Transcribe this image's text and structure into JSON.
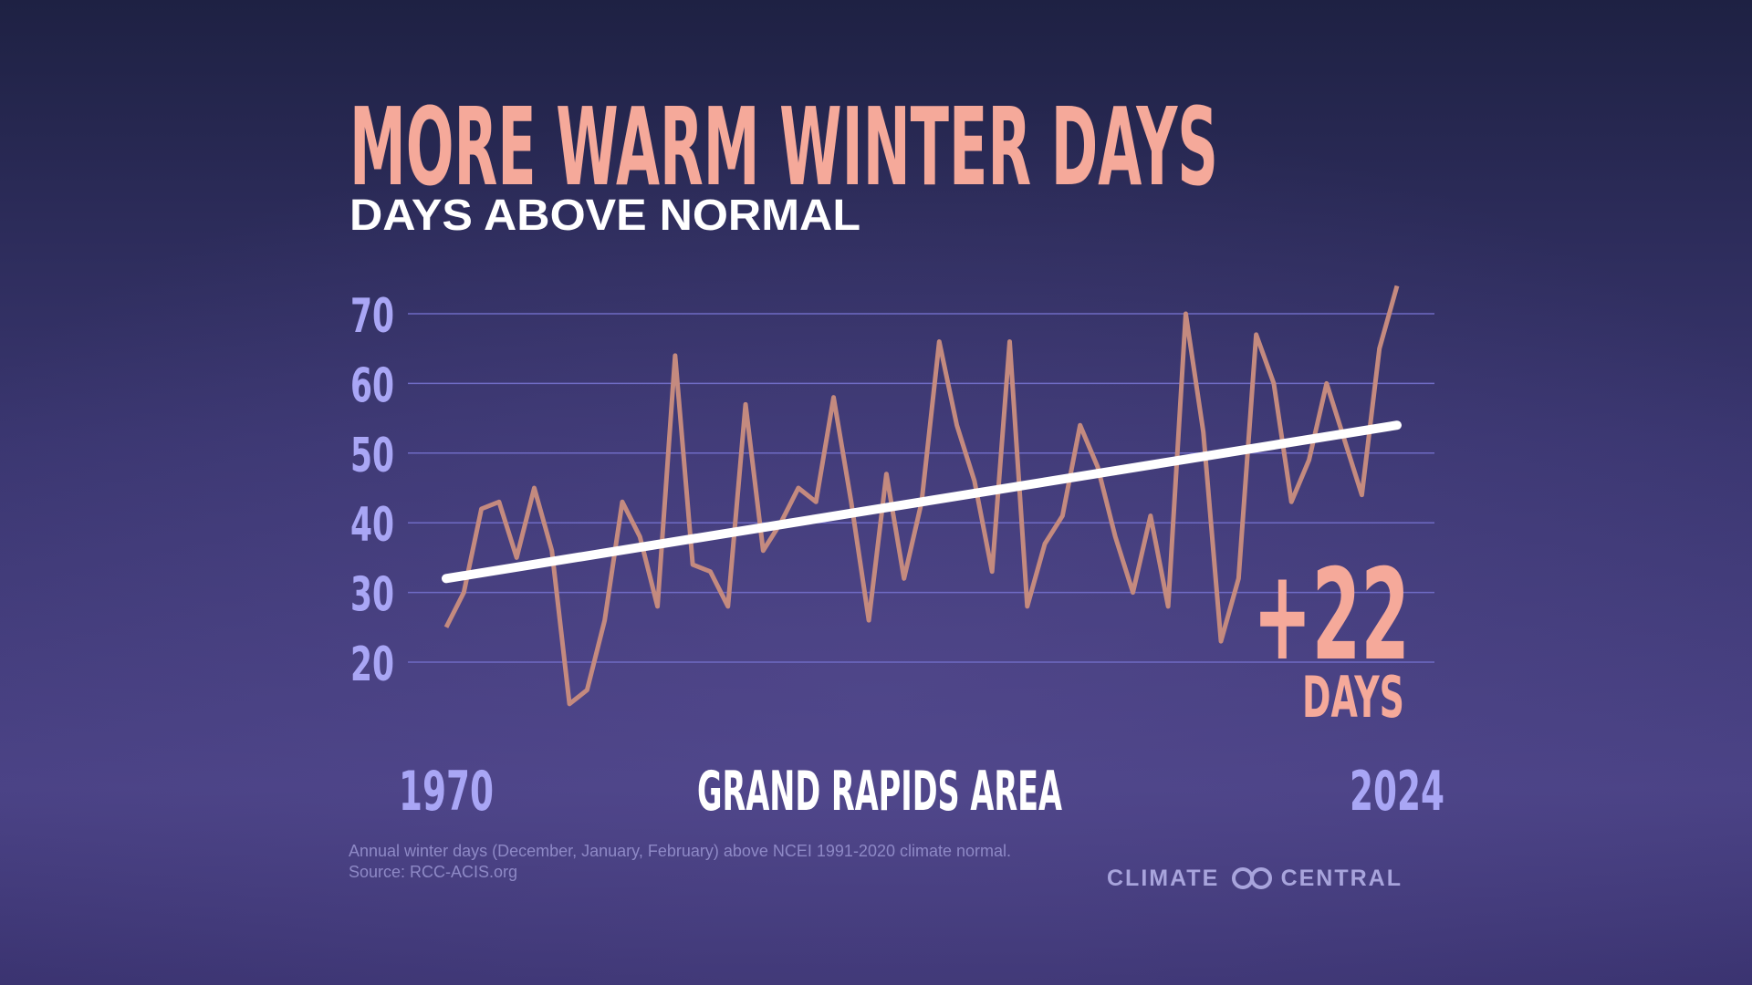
{
  "chart_data": {
    "type": "line",
    "title": "MORE WARM WINTER DAYS",
    "subtitle": "DAYS ABOVE NORMAL",
    "x": [
      1970,
      1971,
      1972,
      1973,
      1974,
      1975,
      1976,
      1977,
      1978,
      1979,
      1980,
      1981,
      1982,
      1983,
      1984,
      1985,
      1986,
      1987,
      1988,
      1989,
      1990,
      1991,
      1992,
      1993,
      1994,
      1995,
      1996,
      1997,
      1998,
      1999,
      2000,
      2001,
      2002,
      2003,
      2004,
      2005,
      2006,
      2007,
      2008,
      2009,
      2010,
      2011,
      2012,
      2013,
      2014,
      2015,
      2016,
      2017,
      2018,
      2019,
      2020,
      2021,
      2022,
      2023,
      2024
    ],
    "series": [
      {
        "color": "#c48a7f",
        "values": [
          25,
          30,
          42,
          43,
          35,
          45,
          36,
          14,
          16,
          26,
          43,
          38,
          28,
          64,
          34,
          33,
          28,
          57,
          36,
          40,
          45,
          43,
          58,
          43,
          26,
          47,
          32,
          43,
          66,
          54,
          46,
          33,
          66,
          28,
          37,
          41,
          54,
          48,
          38,
          30,
          41,
          28,
          70,
          53,
          23,
          32,
          67,
          60,
          43,
          49,
          60,
          52,
          44,
          65,
          74
        ]
      }
    ],
    "trend": {
      "x": [
        1970,
        2024
      ],
      "values": [
        32,
        54
      ],
      "color": "#ffffff"
    },
    "xlim": [
      1970,
      2024
    ],
    "xticks": [
      1970,
      2024
    ],
    "ylim": [
      20,
      70
    ],
    "yticks": [
      20,
      30,
      40,
      50,
      60,
      70
    ],
    "grid": true,
    "location": "GRAND RAPIDS AREA",
    "annotation": {
      "change": "+22",
      "unit": "DAYS"
    },
    "note": "Annual winter days (December, January, February) above NCEI 1991-2020 climate normal.",
    "source": "Source: RCC-ACIS.org",
    "logo": [
      "CLIMATE",
      "CENTRAL"
    ]
  }
}
